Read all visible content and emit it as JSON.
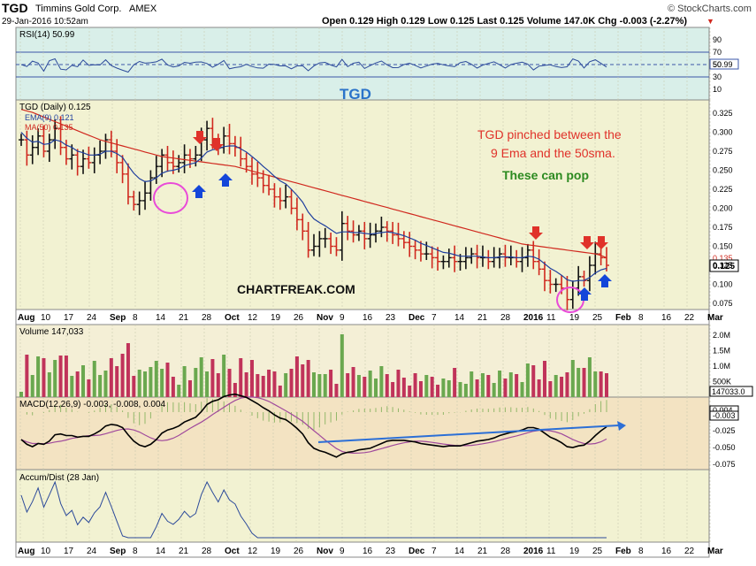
{
  "header": {
    "symbol": "TGD",
    "company": "Timmins Gold Corp.",
    "exchange": "AMEX",
    "date": "29-Jan-2016 10:52am",
    "brand": "© StockCharts.com",
    "quote": "Open 0.129  High 0.129  Low 0.125  Last 0.125  Volume 147.0K  Chg -0.003 (-2.27%)",
    "chg_arrow": "▼"
  },
  "panels": {
    "rsi": {
      "label": "RSI(14) 50.99",
      "ticks": [
        "90",
        "70",
        "50",
        "30",
        "10"
      ],
      "value_tag": "50.99",
      "ticker_title": "TGD"
    },
    "price": {
      "label": "TGD (Daily) 0.125",
      "legend": [
        {
          "label": "EMA(9) 0.121",
          "color": "#1f3f9e"
        },
        {
          "label": "MA(50) 0.135",
          "color": "#d0281e"
        }
      ],
      "ticks": [
        "0.325",
        "0.300",
        "0.275",
        "0.250",
        "0.225",
        "0.200",
        "0.175",
        "0.150",
        "0.125",
        "0.100",
        "0.075"
      ],
      "tag_ma": "0.135",
      "tag_last": "0.125",
      "annotation_1": "TGD pinched between the",
      "annotation_2": "9 Ema and the 50sma.",
      "annotation_3": "These can pop",
      "watermark": "CHARTFREAK.COM"
    },
    "volume": {
      "label": "Volume 147,033",
      "ticks": [
        "2.0M",
        "1.5M",
        "1.0M",
        "500K"
      ],
      "value_tag": "147033.0"
    },
    "macd": {
      "label": "MACD(12,26,9) -0.003, -0.008, 0.004",
      "ticks": [
        "0.000",
        "-0.025",
        "-0.050",
        "-0.075"
      ],
      "tag1": "0.004",
      "tag2": "-0.003"
    },
    "ad": {
      "label": "Accum/Dist (28 Jan)"
    }
  },
  "xaxis": [
    "Aug",
    "10",
    "17",
    "24",
    "Sep",
    "8",
    "14",
    "21",
    "28",
    "Oct",
    "12",
    "19",
    "26",
    "Nov",
    "9",
    "16",
    "23",
    "Dec",
    "7",
    "14",
    "21",
    "28",
    "2016",
    "11",
    "19",
    "25",
    "Feb",
    "8",
    "16",
    "22",
    "Mar"
  ],
  "chart_data": {
    "type": "candlestick",
    "title": "TGD Timmins Gold Corp. AMEX",
    "dates_range": [
      "2015-08-03",
      "2016-01-29"
    ],
    "price_range": [
      0.07,
      0.335
    ],
    "close": [
      0.29,
      0.27,
      0.28,
      0.295,
      0.275,
      0.29,
      0.305,
      0.28,
      0.265,
      0.27,
      0.255,
      0.265,
      0.26,
      0.27,
      0.275,
      0.29,
      0.275,
      0.26,
      0.245,
      0.215,
      0.205,
      0.21,
      0.22,
      0.24,
      0.255,
      0.27,
      0.26,
      0.255,
      0.26,
      0.27,
      0.265,
      0.27,
      0.29,
      0.305,
      0.29,
      0.28,
      0.295,
      0.285,
      0.28,
      0.265,
      0.255,
      0.245,
      0.24,
      0.23,
      0.225,
      0.215,
      0.21,
      0.215,
      0.2,
      0.185,
      0.17,
      0.145,
      0.15,
      0.16,
      0.16,
      0.15,
      0.145,
      0.18,
      0.17,
      0.165,
      0.17,
      0.16,
      0.165,
      0.17,
      0.175,
      0.17,
      0.165,
      0.16,
      0.155,
      0.15,
      0.145,
      0.14,
      0.14,
      0.135,
      0.13,
      0.13,
      0.135,
      0.13,
      0.13,
      0.135,
      0.14,
      0.135,
      0.135,
      0.13,
      0.135,
      0.14,
      0.135,
      0.135,
      0.13,
      0.135,
      0.145,
      0.13,
      0.12,
      0.105,
      0.1,
      0.1,
      0.095,
      0.08,
      0.095,
      0.11,
      0.105,
      0.125,
      0.14,
      0.135,
      0.125
    ],
    "ema9": [
      0.3,
      0.292,
      0.287,
      0.288,
      0.284,
      0.285,
      0.29,
      0.288,
      0.283,
      0.28,
      0.275,
      0.273,
      0.27,
      0.27,
      0.271,
      0.275,
      0.275,
      0.272,
      0.267,
      0.256,
      0.246,
      0.239,
      0.235,
      0.236,
      0.24,
      0.246,
      0.249,
      0.25,
      0.252,
      0.256,
      0.258,
      0.26,
      0.266,
      0.274,
      0.277,
      0.278,
      0.281,
      0.282,
      0.282,
      0.278,
      0.274,
      0.268,
      0.262,
      0.255,
      0.249,
      0.242,
      0.236,
      0.232,
      0.225,
      0.217,
      0.208,
      0.195,
      0.186,
      0.181,
      0.177,
      0.172,
      0.167,
      0.169,
      0.169,
      0.168,
      0.168,
      0.167,
      0.166,
      0.167,
      0.168,
      0.169,
      0.168,
      0.166,
      0.164,
      0.161,
      0.158,
      0.154,
      0.151,
      0.148,
      0.145,
      0.142,
      0.141,
      0.139,
      0.137,
      0.137,
      0.137,
      0.137,
      0.136,
      0.135,
      0.135,
      0.136,
      0.136,
      0.136,
      0.135,
      0.135,
      0.137,
      0.136,
      0.133,
      0.127,
      0.121,
      0.117,
      0.112,
      0.106,
      0.104,
      0.105,
      0.105,
      0.109,
      0.115,
      0.119,
      0.121
    ],
    "ma50": [
      0.33,
      0.328,
      0.326,
      0.323,
      0.32,
      0.317,
      0.314,
      0.311,
      0.308,
      0.305,
      0.302,
      0.299,
      0.296,
      0.293,
      0.29,
      0.288,
      0.286,
      0.284,
      0.282,
      0.28,
      0.278,
      0.276,
      0.274,
      0.272,
      0.27,
      0.268,
      0.267,
      0.266,
      0.265,
      0.264,
      0.263,
      0.262,
      0.261,
      0.26,
      0.259,
      0.258,
      0.257,
      0.256,
      0.255,
      0.253,
      0.251,
      0.249,
      0.247,
      0.245,
      0.243,
      0.241,
      0.239,
      0.237,
      0.235,
      0.233,
      0.231,
      0.229,
      0.227,
      0.225,
      0.223,
      0.221,
      0.219,
      0.217,
      0.215,
      0.213,
      0.211,
      0.209,
      0.207,
      0.205,
      0.203,
      0.201,
      0.199,
      0.197,
      0.195,
      0.193,
      0.191,
      0.189,
      0.187,
      0.185,
      0.183,
      0.181,
      0.179,
      0.177,
      0.175,
      0.173,
      0.171,
      0.169,
      0.167,
      0.165,
      0.163,
      0.161,
      0.159,
      0.157,
      0.155,
      0.153,
      0.152,
      0.151,
      0.15,
      0.149,
      0.148,
      0.147,
      0.146,
      0.145,
      0.144,
      0.143,
      0.142,
      0.141,
      0.14,
      0.138,
      0.135
    ]
  }
}
